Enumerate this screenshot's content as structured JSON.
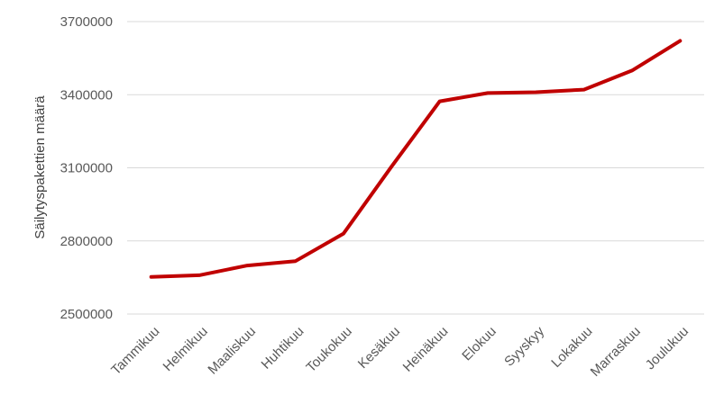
{
  "chart_data": {
    "type": "line",
    "title": "",
    "xlabel": "",
    "ylabel": "Säilytyspakettien määrä",
    "categories": [
      "Tammikuu",
      "Helmikuu",
      "Maaliskuu",
      "Huhtikuu",
      "Toukokuu",
      "Kesäkuu",
      "Heinäkuu",
      "Elokuu",
      "Syyskyy",
      "Lokakuu",
      "Marraskuu",
      "Joulukuu"
    ],
    "series": [
      {
        "name": "",
        "color": "#C00000",
        "values": [
          2652000,
          2659000,
          2699000,
          2717000,
          2830000,
          3105000,
          3373000,
          3407000,
          3410000,
          3421000,
          3499000,
          3621000
        ]
      }
    ],
    "yticks": [
      "2500000",
      "2800000",
      "3100000",
      "3400000",
      "3700000"
    ],
    "ylim": [
      2500000,
      3700000
    ],
    "grid": "horizontal",
    "legend": "none"
  }
}
